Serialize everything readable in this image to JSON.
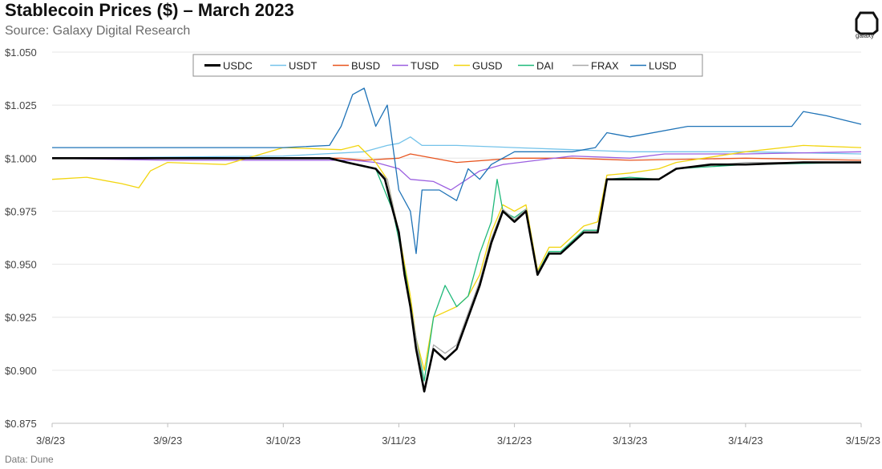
{
  "header": {
    "title": "Stablecoin Prices ($) – March 2023",
    "subtitle": "Source: Galaxy Digital Research",
    "logo_text": "galaxy"
  },
  "footer": {
    "note": "Data: Dune"
  },
  "chart_data": {
    "type": "line",
    "ylim": [
      0.875,
      1.05
    ],
    "y_ticks": [
      {
        "v": 0.875,
        "label": "$0.875"
      },
      {
        "v": 0.9,
        "label": "$0.900"
      },
      {
        "v": 0.925,
        "label": "$0.925"
      },
      {
        "v": 0.95,
        "label": "$0.950"
      },
      {
        "v": 0.975,
        "label": "$0.975"
      },
      {
        "v": 1.0,
        "label": "$1.000"
      },
      {
        "v": 1.025,
        "label": "$1.025"
      },
      {
        "v": 1.05,
        "label": "$1.050"
      }
    ],
    "x_ticks": [
      {
        "v": 0,
        "label": "3/8/23"
      },
      {
        "v": 1,
        "label": "3/9/23"
      },
      {
        "v": 2,
        "label": "3/10/23"
      },
      {
        "v": 3,
        "label": "3/11/23"
      },
      {
        "v": 4,
        "label": "3/12/23"
      },
      {
        "v": 5,
        "label": "3/13/23"
      },
      {
        "v": 6,
        "label": "3/14/23"
      },
      {
        "v": 7,
        "label": "3/15/23"
      }
    ],
    "grid": "horizontal",
    "legend_position": "top-center",
    "series": [
      {
        "name": "USDC",
        "color": "#000000",
        "points": [
          [
            0,
            1.0
          ],
          [
            2.4,
            1.0
          ],
          [
            2.55,
            0.998
          ],
          [
            2.8,
            0.995
          ],
          [
            2.88,
            0.99
          ],
          [
            2.95,
            0.975
          ],
          [
            3.0,
            0.965
          ],
          [
            3.05,
            0.945
          ],
          [
            3.1,
            0.93
          ],
          [
            3.15,
            0.91
          ],
          [
            3.22,
            0.89
          ],
          [
            3.3,
            0.91
          ],
          [
            3.4,
            0.905
          ],
          [
            3.5,
            0.91
          ],
          [
            3.6,
            0.925
          ],
          [
            3.7,
            0.94
          ],
          [
            3.8,
            0.96
          ],
          [
            3.9,
            0.975
          ],
          [
            4.0,
            0.97
          ],
          [
            4.1,
            0.975
          ],
          [
            4.2,
            0.945
          ],
          [
            4.3,
            0.955
          ],
          [
            4.4,
            0.955
          ],
          [
            4.6,
            0.965
          ],
          [
            4.72,
            0.965
          ],
          [
            4.8,
            0.99
          ],
          [
            5.0,
            0.99
          ],
          [
            5.25,
            0.99
          ],
          [
            5.4,
            0.995
          ],
          [
            5.7,
            0.997
          ],
          [
            6.0,
            0.997
          ],
          [
            6.5,
            0.998
          ],
          [
            7.0,
            0.998
          ]
        ]
      },
      {
        "name": "USDT",
        "color": "#74c3ea",
        "points": [
          [
            0,
            1.0
          ],
          [
            2.0,
            1.001
          ],
          [
            2.7,
            1.003
          ],
          [
            2.9,
            1.006
          ],
          [
            3.0,
            1.007
          ],
          [
            3.1,
            1.01
          ],
          [
            3.2,
            1.006
          ],
          [
            3.5,
            1.006
          ],
          [
            4.0,
            1.005
          ],
          [
            4.5,
            1.004
          ],
          [
            5.0,
            1.003
          ],
          [
            5.5,
            1.003
          ],
          [
            6.0,
            1.003
          ],
          [
            7.0,
            1.002
          ]
        ]
      },
      {
        "name": "BUSD",
        "color": "#e8541e",
        "points": [
          [
            0,
            1.0
          ],
          [
            2.5,
            1.0
          ],
          [
            2.7,
            0.999
          ],
          [
            3.0,
            1.0
          ],
          [
            3.1,
            1.002
          ],
          [
            3.5,
            0.998
          ],
          [
            4.0,
            1.0
          ],
          [
            4.5,
            1.0
          ],
          [
            5.0,
            0.999
          ],
          [
            6.0,
            1.0
          ],
          [
            7.0,
            0.999
          ]
        ]
      },
      {
        "name": "TUSD",
        "color": "#9b5fe0",
        "points": [
          [
            0,
            1.0
          ],
          [
            1.0,
            0.999
          ],
          [
            2.0,
            0.999
          ],
          [
            2.6,
            0.999
          ],
          [
            2.8,
            0.998
          ],
          [
            3.0,
            0.995
          ],
          [
            3.1,
            0.99
          ],
          [
            3.3,
            0.989
          ],
          [
            3.45,
            0.985
          ],
          [
            3.7,
            0.994
          ],
          [
            3.9,
            0.997
          ],
          [
            4.2,
            0.999
          ],
          [
            4.5,
            1.001
          ],
          [
            5.0,
            1.0
          ],
          [
            5.3,
            1.002
          ],
          [
            6.0,
            1.002
          ],
          [
            7.0,
            1.003
          ]
        ]
      },
      {
        "name": "GUSD",
        "color": "#f2d50f",
        "points": [
          [
            0,
            0.99
          ],
          [
            0.3,
            0.991
          ],
          [
            0.6,
            0.988
          ],
          [
            0.75,
            0.986
          ],
          [
            0.85,
            0.994
          ],
          [
            1.0,
            0.998
          ],
          [
            1.5,
            0.997
          ],
          [
            2.0,
            1.005
          ],
          [
            2.5,
            1.004
          ],
          [
            2.65,
            1.006
          ],
          [
            2.8,
            0.998
          ],
          [
            2.9,
            0.99
          ],
          [
            3.0,
            0.965
          ],
          [
            3.1,
            0.935
          ],
          [
            3.15,
            0.915
          ],
          [
            3.22,
            0.9
          ],
          [
            3.3,
            0.925
          ],
          [
            3.5,
            0.93
          ],
          [
            3.6,
            0.935
          ],
          [
            3.7,
            0.945
          ],
          [
            3.8,
            0.965
          ],
          [
            3.9,
            0.978
          ],
          [
            4.0,
            0.975
          ],
          [
            4.1,
            0.978
          ],
          [
            4.2,
            0.947
          ],
          [
            4.3,
            0.958
          ],
          [
            4.4,
            0.958
          ],
          [
            4.6,
            0.968
          ],
          [
            4.72,
            0.97
          ],
          [
            4.8,
            0.992
          ],
          [
            5.0,
            0.993
          ],
          [
            5.25,
            0.995
          ],
          [
            5.4,
            0.998
          ],
          [
            6.0,
            1.003
          ],
          [
            6.5,
            1.006
          ],
          [
            7.0,
            1.005
          ]
        ]
      },
      {
        "name": "DAI",
        "color": "#1fb97a",
        "points": [
          [
            0,
            1.0
          ],
          [
            2.4,
            1.0
          ],
          [
            2.55,
            0.998
          ],
          [
            2.8,
            0.995
          ],
          [
            2.95,
            0.975
          ],
          [
            3.05,
            0.948
          ],
          [
            3.15,
            0.915
          ],
          [
            3.22,
            0.895
          ],
          [
            3.3,
            0.925
          ],
          [
            3.4,
            0.94
          ],
          [
            3.5,
            0.93
          ],
          [
            3.6,
            0.935
          ],
          [
            3.7,
            0.955
          ],
          [
            3.8,
            0.97
          ],
          [
            3.85,
            0.99
          ],
          [
            3.9,
            0.975
          ],
          [
            4.0,
            0.972
          ],
          [
            4.1,
            0.976
          ],
          [
            4.2,
            0.946
          ],
          [
            4.3,
            0.956
          ],
          [
            4.4,
            0.956
          ],
          [
            4.6,
            0.966
          ],
          [
            4.72,
            0.966
          ],
          [
            4.8,
            0.99
          ],
          [
            5.0,
            0.991
          ],
          [
            5.25,
            0.99
          ],
          [
            5.4,
            0.995
          ],
          [
            6.0,
            0.997
          ],
          [
            7.0,
            0.998
          ]
        ]
      },
      {
        "name": "FRAX",
        "color": "#a9a9a9",
        "points": [
          [
            0,
            1.0
          ],
          [
            2.4,
            1.0
          ],
          [
            2.55,
            0.998
          ],
          [
            2.8,
            0.995
          ],
          [
            2.9,
            0.99
          ],
          [
            2.98,
            0.97
          ],
          [
            3.05,
            0.945
          ],
          [
            3.12,
            0.925
          ],
          [
            3.18,
            0.905
          ],
          [
            3.22,
            0.89
          ],
          [
            3.3,
            0.912
          ],
          [
            3.4,
            0.908
          ],
          [
            3.5,
            0.912
          ],
          [
            3.6,
            0.927
          ],
          [
            3.7,
            0.942
          ],
          [
            3.8,
            0.962
          ],
          [
            3.9,
            0.976
          ],
          [
            4.0,
            0.971
          ],
          [
            4.1,
            0.976
          ],
          [
            4.2,
            0.946
          ],
          [
            4.3,
            0.955
          ],
          [
            4.4,
            0.955
          ],
          [
            4.6,
            0.965
          ],
          [
            4.72,
            0.965
          ],
          [
            4.8,
            0.99
          ],
          [
            5.0,
            0.99
          ],
          [
            5.25,
            0.99
          ],
          [
            5.4,
            0.995
          ],
          [
            6.0,
            0.998
          ],
          [
            7.0,
            0.998
          ]
        ]
      },
      {
        "name": "LUSD",
        "color": "#1f73b7",
        "points": [
          [
            0,
            1.005
          ],
          [
            1.0,
            1.005
          ],
          [
            2.0,
            1.005
          ],
          [
            2.4,
            1.006
          ],
          [
            2.5,
            1.015
          ],
          [
            2.6,
            1.03
          ],
          [
            2.7,
            1.033
          ],
          [
            2.8,
            1.015
          ],
          [
            2.9,
            1.025
          ],
          [
            3.0,
            0.985
          ],
          [
            3.1,
            0.975
          ],
          [
            3.15,
            0.955
          ],
          [
            3.2,
            0.985
          ],
          [
            3.35,
            0.985
          ],
          [
            3.5,
            0.98
          ],
          [
            3.6,
            0.995
          ],
          [
            3.7,
            0.99
          ],
          [
            3.8,
            0.997
          ],
          [
            4.0,
            1.003
          ],
          [
            4.5,
            1.003
          ],
          [
            4.7,
            1.005
          ],
          [
            4.8,
            1.012
          ],
          [
            5.0,
            1.01
          ],
          [
            5.5,
            1.015
          ],
          [
            6.0,
            1.015
          ],
          [
            6.4,
            1.015
          ],
          [
            6.5,
            1.022
          ],
          [
            6.7,
            1.02
          ],
          [
            6.85,
            1.018
          ],
          [
            7.0,
            1.016
          ]
        ]
      }
    ]
  }
}
